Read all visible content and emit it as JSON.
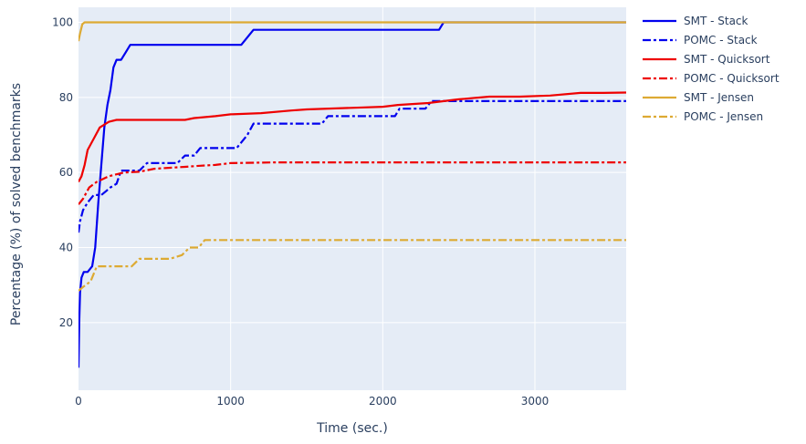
{
  "chart_data": {
    "type": "line",
    "title": "",
    "xlabel": "Time (sec.)",
    "ylabel": "Percentage (%) of solved benchmarks",
    "xlim": [
      0,
      3600
    ],
    "ylim": [
      2,
      104
    ],
    "xticks": [
      0,
      1000,
      2000,
      3000
    ],
    "yticks": [
      20,
      40,
      60,
      80,
      100
    ],
    "grid": true,
    "plot_bg": "#e5ecf6",
    "legend_position": "right",
    "series": [
      {
        "name": "SMT - Stack",
        "color": "#0000ee",
        "dash": "solid",
        "points": [
          [
            0,
            8
          ],
          [
            5,
            20
          ],
          [
            10,
            28
          ],
          [
            20,
            32
          ],
          [
            35,
            33.5
          ],
          [
            60,
            33.5
          ],
          [
            90,
            35
          ],
          [
            110,
            40
          ],
          [
            130,
            52
          ],
          [
            150,
            62
          ],
          [
            170,
            72
          ],
          [
            190,
            78
          ],
          [
            210,
            82
          ],
          [
            230,
            88
          ],
          [
            250,
            90
          ],
          [
            280,
            90
          ],
          [
            310,
            92
          ],
          [
            340,
            94
          ],
          [
            400,
            94
          ],
          [
            1070,
            94
          ],
          [
            1110,
            96
          ],
          [
            1150,
            98
          ],
          [
            2370,
            98
          ],
          [
            2400,
            100
          ],
          [
            3600,
            100
          ]
        ]
      },
      {
        "name": "POMC - Stack",
        "color": "#0000ee",
        "dash": "dashdot",
        "points": [
          [
            0,
            44
          ],
          [
            10,
            47
          ],
          [
            30,
            50
          ],
          [
            60,
            52
          ],
          [
            100,
            54
          ],
          [
            150,
            54
          ],
          [
            180,
            55
          ],
          [
            210,
            56
          ],
          [
            250,
            57
          ],
          [
            280,
            60.5
          ],
          [
            330,
            60.5
          ],
          [
            400,
            60.5
          ],
          [
            450,
            62.5
          ],
          [
            650,
            62.5
          ],
          [
            700,
            64.5
          ],
          [
            760,
            64.5
          ],
          [
            800,
            66.5
          ],
          [
            1040,
            66.5
          ],
          [
            1110,
            70
          ],
          [
            1150,
            73
          ],
          [
            1600,
            73
          ],
          [
            1640,
            75
          ],
          [
            2080,
            75
          ],
          [
            2110,
            77
          ],
          [
            2280,
            77
          ],
          [
            2320,
            79
          ],
          [
            3600,
            79
          ]
        ]
      },
      {
        "name": "SMT - Quicksort",
        "color": "#ee0000",
        "dash": "solid",
        "points": [
          [
            0,
            57.5
          ],
          [
            20,
            59
          ],
          [
            40,
            62
          ],
          [
            60,
            66
          ],
          [
            100,
            69
          ],
          [
            140,
            72
          ],
          [
            200,
            73.5
          ],
          [
            250,
            74
          ],
          [
            400,
            74
          ],
          [
            700,
            74
          ],
          [
            760,
            74.5
          ],
          [
            900,
            75
          ],
          [
            1000,
            75.5
          ],
          [
            1200,
            75.8
          ],
          [
            1400,
            76.5
          ],
          [
            1500,
            76.8
          ],
          [
            2000,
            77.5
          ],
          [
            2100,
            78
          ],
          [
            2300,
            78.5
          ],
          [
            2500,
            79.5
          ],
          [
            2700,
            80.2
          ],
          [
            2900,
            80.2
          ],
          [
            3100,
            80.5
          ],
          [
            3300,
            81.2
          ],
          [
            3450,
            81.2
          ],
          [
            3600,
            81.3
          ]
        ]
      },
      {
        "name": "POMC - Quicksort",
        "color": "#ee0000",
        "dash": "dashdot",
        "points": [
          [
            0,
            51.5
          ],
          [
            30,
            53
          ],
          [
            70,
            56
          ],
          [
            120,
            57.5
          ],
          [
            200,
            59
          ],
          [
            250,
            59.5
          ],
          [
            300,
            60
          ],
          [
            400,
            60.2
          ],
          [
            500,
            61
          ],
          [
            700,
            61.5
          ],
          [
            800,
            61.8
          ],
          [
            900,
            62
          ],
          [
            1000,
            62.5
          ],
          [
            1300,
            62.7
          ],
          [
            1600,
            62.7
          ],
          [
            2000,
            62.7
          ],
          [
            3600,
            62.7
          ]
        ]
      },
      {
        "name": "SMT - Jensen",
        "color": "#ddaa33",
        "dash": "solid",
        "points": [
          [
            0,
            95
          ],
          [
            10,
            97
          ],
          [
            25,
            99.5
          ],
          [
            40,
            100
          ],
          [
            3600,
            100
          ]
        ]
      },
      {
        "name": "POMC - Jensen",
        "color": "#ddaa33",
        "dash": "dashdot",
        "points": [
          [
            0,
            28.5
          ],
          [
            30,
            29.5
          ],
          [
            80,
            31
          ],
          [
            120,
            35
          ],
          [
            200,
            35
          ],
          [
            350,
            35
          ],
          [
            400,
            37
          ],
          [
            500,
            37
          ],
          [
            600,
            37
          ],
          [
            680,
            38
          ],
          [
            730,
            40
          ],
          [
            790,
            40
          ],
          [
            830,
            42
          ],
          [
            1200,
            42
          ],
          [
            3600,
            42
          ]
        ]
      }
    ]
  }
}
